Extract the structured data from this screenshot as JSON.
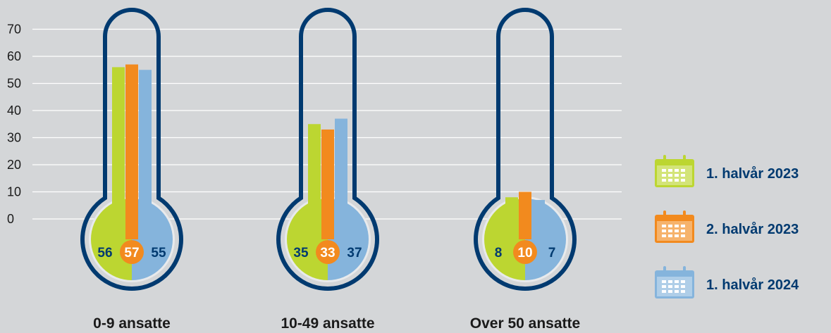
{
  "chart_data": {
    "type": "bar",
    "ylim": [
      0,
      70
    ],
    "yticks": [
      0,
      10,
      20,
      30,
      40,
      50,
      60,
      70
    ],
    "grid": true,
    "legend_placement": "right",
    "categories": [
      "0-9 ansatte",
      "10-49 ansatte",
      "Over 50 ansatte"
    ],
    "series": [
      {
        "name": "1. halvår 2023",
        "color": "#bcd631",
        "text_color": "#003a70",
        "values": [
          56,
          35,
          8
        ]
      },
      {
        "name": "2. halvår 2023",
        "color": "#f28a1e",
        "text_color": "#ffffff",
        "values": [
          57,
          33,
          10
        ]
      },
      {
        "name": "1. halvår 2024",
        "color": "#85b4dc",
        "text_color": "#003a70",
        "values": [
          55,
          37,
          7
        ]
      }
    ],
    "outline_color": "#003a70",
    "legend_icon": "calendar-icon"
  }
}
